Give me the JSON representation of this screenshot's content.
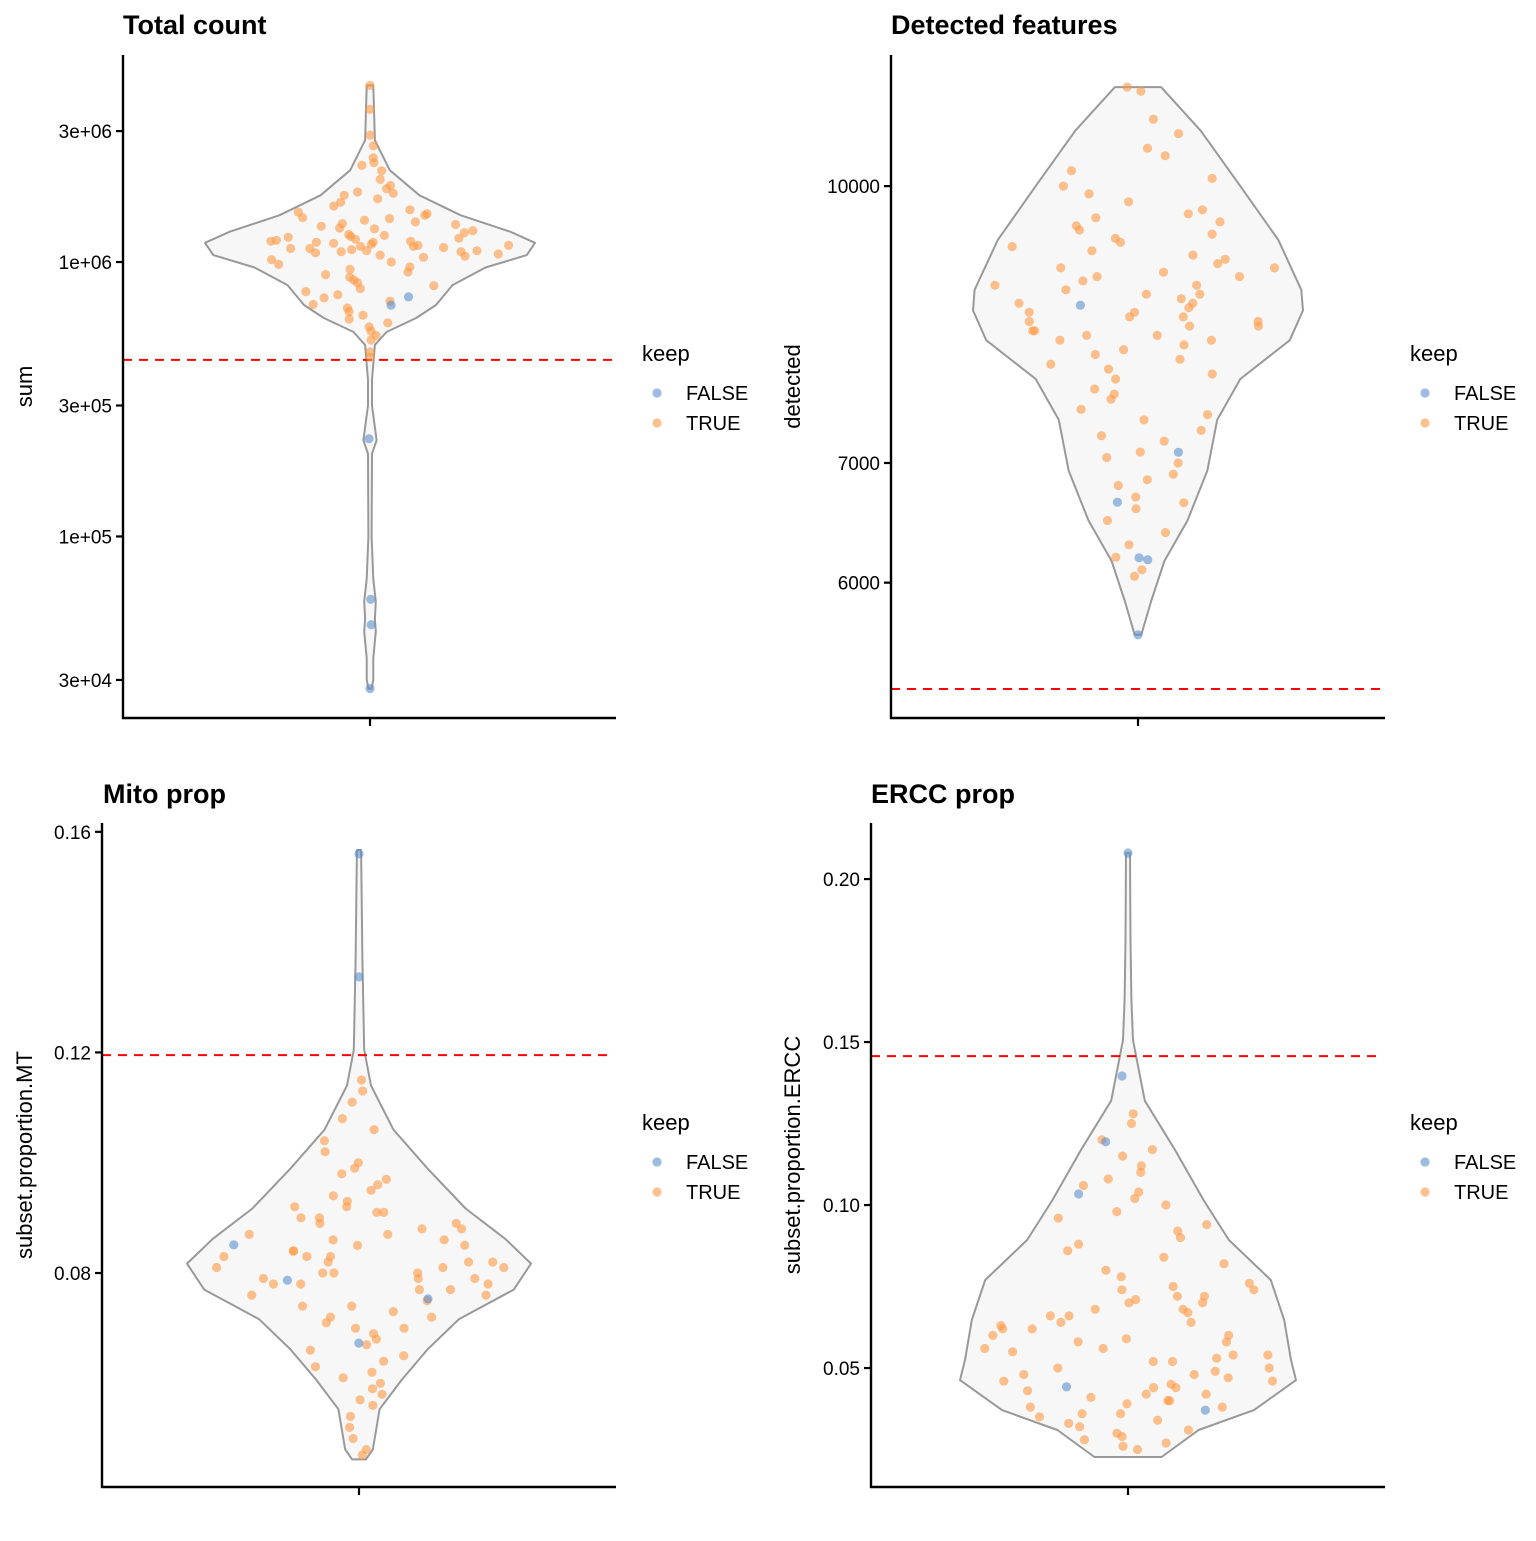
{
  "legend": {
    "title": "keep",
    "entries": [
      {
        "label": "FALSE",
        "color": "#5b8fcf"
      },
      {
        "label": "TRUE",
        "color": "#ff9a42"
      }
    ]
  },
  "colors": {
    "violin_fill": "#f7f7f7",
    "violin_stroke": "#999999",
    "threshold": "#ff0000"
  },
  "chart_data": [
    {
      "type": "violin",
      "title": "Total count",
      "ylabel": "sum",
      "scale": "log10",
      "ylim": [
        21800,
        5680000
      ],
      "yticks": [
        {
          "value": 3000000,
          "label": "3e+06"
        },
        {
          "value": 1000000,
          "label": "1e+06"
        },
        {
          "value": 300000,
          "label": "3e+05"
        },
        {
          "value": 100000,
          "label": "1e+05"
        },
        {
          "value": 30000,
          "label": "3e+04"
        }
      ],
      "threshold": 440000,
      "density": [
        [
          4400000,
          0.02
        ],
        [
          2780000,
          0.03
        ],
        [
          2160000,
          0.12
        ],
        [
          1750000,
          0.3
        ],
        [
          1480000,
          0.55
        ],
        [
          1290000,
          0.85
        ],
        [
          1175000,
          1.0
        ],
        [
          1060000,
          0.95
        ],
        [
          955000,
          0.7
        ],
        [
          824000,
          0.5
        ],
        [
          697000,
          0.4
        ],
        [
          625000,
          0.28
        ],
        [
          556000,
          0.1
        ],
        [
          499000,
          0.03
        ],
        [
          372000,
          0.012
        ],
        [
          300000,
          0.012
        ],
        [
          250000,
          0.03
        ],
        [
          224000,
          0.04
        ],
        [
          200000,
          0.012
        ],
        [
          100000,
          0.01
        ],
        [
          70000,
          0.02
        ],
        [
          58000,
          0.035
        ],
        [
          50000,
          0.03
        ],
        [
          45000,
          0.035
        ],
        [
          36000,
          0.02
        ],
        [
          30000,
          0.02
        ],
        [
          27900,
          0.01
        ]
      ],
      "points_true": [
        4400000,
        3600000,
        2900000,
        2650000,
        2400000,
        2300000,
        2250000,
        2150000,
        2000000,
        1900000,
        1850000,
        1800000,
        1780000,
        1750000,
        1700000,
        1650000,
        1600000,
        1550000,
        1500000,
        1480000,
        1450000,
        1420000,
        1400000,
        1380000,
        1350000,
        1330000,
        1300000,
        1280000,
        1260000,
        1240000,
        1220000,
        1200000,
        1190000,
        1180000,
        1170000,
        1160000,
        1150000,
        1140000,
        1130000,
        1120000,
        1110000,
        1100000,
        1090000,
        1080000,
        1060000,
        1050000,
        1040000,
        1020000,
        1000000,
        980000,
        960000,
        940000,
        920000,
        900000,
        880000,
        860000,
        840000,
        820000,
        800000,
        780000,
        760000,
        740000,
        720000,
        700000,
        680000,
        660000,
        640000,
        620000,
        600000,
        580000,
        560000,
        540000,
        520000,
        470000,
        450000,
        1250000,
        1210000,
        1180000,
        1150000,
        1120000,
        1100000,
        1070000,
        1230000,
        1320000,
        1370000,
        1440000,
        1520000,
        1190000,
        1140000,
        1090000
      ],
      "points_false": [
        746000,
        696000,
        227000,
        59000,
        47700,
        27900
      ]
    },
    {
      "type": "violin",
      "title": "Detected features",
      "ylabel": "detected",
      "scale": "log10",
      "ylim": [
        5040,
        11840
      ],
      "yticks": [
        {
          "value": 10000,
          "label": "10000"
        },
        {
          "value": 7000,
          "label": "7000"
        },
        {
          "value": 6000,
          "label": "6000"
        }
      ],
      "threshold": 5232,
      "density": [
        [
          11360,
          0.14
        ],
        [
          10740,
          0.38
        ],
        [
          10000,
          0.62
        ],
        [
          9330,
          0.85
        ],
        [
          8750,
          0.99
        ],
        [
          8520,
          1.0
        ],
        [
          8200,
          0.92
        ],
        [
          7800,
          0.62
        ],
        [
          7400,
          0.48
        ],
        [
          6930,
          0.42
        ],
        [
          6500,
          0.3
        ],
        [
          6170,
          0.16
        ],
        [
          5860,
          0.08
        ],
        [
          5610,
          0.02
        ]
      ],
      "points_true": [
        11360,
        11300,
        10900,
        10700,
        10500,
        10400,
        10200,
        10100,
        10000,
        9900,
        9800,
        9700,
        9600,
        9550,
        9500,
        9400,
        9350,
        9300,
        9250,
        9200,
        9150,
        9100,
        9050,
        9000,
        8950,
        8900,
        8850,
        8800,
        8750,
        8700,
        8650,
        8600,
        8550,
        8500,
        8450,
        8400,
        8350,
        8300,
        8250,
        8200,
        8150,
        8100,
        8050,
        8000,
        7900,
        7800,
        7700,
        7600,
        7500,
        7400,
        7300,
        7200,
        7100,
        7000,
        6900,
        6800,
        6700,
        6600,
        6500,
        6400,
        6300,
        6200,
        6100,
        6050,
        8600,
        8500,
        8400,
        8300,
        8200,
        8700,
        8800,
        8900,
        9000,
        8450,
        8350,
        8250,
        7950,
        7850,
        7650,
        7450,
        7250,
        7050,
        6850,
        6650,
        9450,
        9650
      ],
      "points_false": [
        8578,
        7097,
        6655,
        6195,
        6180,
        5610
      ]
    },
    {
      "type": "violin",
      "title": "Mito prop",
      "ylabel": "subset.proportion.MT",
      "scale": "linear",
      "ylim": [
        0.0412,
        0.1616
      ],
      "yticks": [
        {
          "value": 0.16,
          "label": "0.16"
        },
        {
          "value": 0.12,
          "label": "0.12"
        },
        {
          "value": 0.08,
          "label": "0.08"
        }
      ],
      "threshold": 0.1195,
      "density": [
        [
          0.1567,
          0.012
        ],
        [
          0.1369,
          0.02
        ],
        [
          0.1205,
          0.03
        ],
        [
          0.114,
          0.07
        ],
        [
          0.106,
          0.2
        ],
        [
          0.0989,
          0.4
        ],
        [
          0.0917,
          0.62
        ],
        [
          0.0862,
          0.85
        ],
        [
          0.0817,
          1.0
        ],
        [
          0.077,
          0.9
        ],
        [
          0.0716,
          0.58
        ],
        [
          0.0662,
          0.4
        ],
        [
          0.0607,
          0.25
        ],
        [
          0.0553,
          0.12
        ],
        [
          0.0516,
          0.1
        ],
        [
          0.048,
          0.08
        ],
        [
          0.0462,
          0.04
        ]
      ],
      "points_true": [
        0.115,
        0.113,
        0.111,
        0.108,
        0.106,
        0.104,
        0.102,
        0.1,
        0.099,
        0.098,
        0.097,
        0.096,
        0.095,
        0.094,
        0.093,
        0.092,
        0.091,
        0.09,
        0.089,
        0.088,
        0.087,
        0.086,
        0.085,
        0.084,
        0.083,
        0.083,
        0.082,
        0.082,
        0.081,
        0.081,
        0.08,
        0.08,
        0.079,
        0.079,
        0.078,
        0.078,
        0.077,
        0.076,
        0.075,
        0.074,
        0.073,
        0.072,
        0.071,
        0.07,
        0.069,
        0.068,
        0.067,
        0.066,
        0.065,
        0.064,
        0.063,
        0.062,
        0.061,
        0.06,
        0.059,
        0.058,
        0.057,
        0.056,
        0.054,
        0.052,
        0.05,
        0.048,
        0.047,
        0.084,
        0.083,
        0.082,
        0.081,
        0.08,
        0.079,
        0.078,
        0.077,
        0.086,
        0.088,
        0.09,
        0.092,
        0.076,
        0.074,
        0.072,
        0.07,
        0.085,
        0.087,
        0.089,
        0.091
      ],
      "points_false": [
        0.156,
        0.1337,
        0.0851,
        0.0787,
        0.0753,
        0.0673
      ]
    },
    {
      "type": "violin",
      "title": "ERCC prop",
      "ylabel": "subset.proportion.ERCC",
      "scale": "linear",
      "ylim": [
        0.0135,
        0.2172
      ],
      "yticks": [
        {
          "value": 0.2,
          "label": "0.20"
        },
        {
          "value": 0.15,
          "label": "0.15"
        },
        {
          "value": 0.1,
          "label": "0.10"
        },
        {
          "value": 0.05,
          "label": "0.05"
        }
      ],
      "threshold": 0.1457,
      "density": [
        [
          0.208,
          0.012
        ],
        [
          0.1813,
          0.015
        ],
        [
          0.163,
          0.02
        ],
        [
          0.1506,
          0.03
        ],
        [
          0.132,
          0.1
        ],
        [
          0.1169,
          0.28
        ],
        [
          0.1015,
          0.45
        ],
        [
          0.0893,
          0.6
        ],
        [
          0.077,
          0.85
        ],
        [
          0.0647,
          0.93
        ],
        [
          0.0525,
          0.97
        ],
        [
          0.0463,
          1.0
        ],
        [
          0.0371,
          0.75
        ],
        [
          0.031,
          0.42
        ],
        [
          0.0227,
          0.2
        ]
      ],
      "points_true": [
        0.128,
        0.125,
        0.12,
        0.117,
        0.115,
        0.112,
        0.11,
        0.108,
        0.106,
        0.104,
        0.102,
        0.1,
        0.098,
        0.096,
        0.094,
        0.092,
        0.09,
        0.088,
        0.086,
        0.084,
        0.082,
        0.08,
        0.078,
        0.076,
        0.075,
        0.074,
        0.072,
        0.071,
        0.07,
        0.068,
        0.067,
        0.066,
        0.064,
        0.063,
        0.062,
        0.06,
        0.059,
        0.058,
        0.056,
        0.055,
        0.054,
        0.053,
        0.052,
        0.05,
        0.049,
        0.048,
        0.047,
        0.046,
        0.045,
        0.044,
        0.043,
        0.042,
        0.041,
        0.04,
        0.039,
        0.038,
        0.036,
        0.035,
        0.034,
        0.033,
        0.032,
        0.031,
        0.03,
        0.029,
        0.028,
        0.027,
        0.026,
        0.025,
        0.074,
        0.072,
        0.07,
        0.068,
        0.066,
        0.064,
        0.062,
        0.06,
        0.058,
        0.056,
        0.054,
        0.052,
        0.05,
        0.048,
        0.046,
        0.044,
        0.042,
        0.04,
        0.038,
        0.036
      ],
      "points_false": [
        0.208,
        0.1396,
        0.1194,
        0.1034,
        0.0442,
        0.0371
      ]
    }
  ]
}
